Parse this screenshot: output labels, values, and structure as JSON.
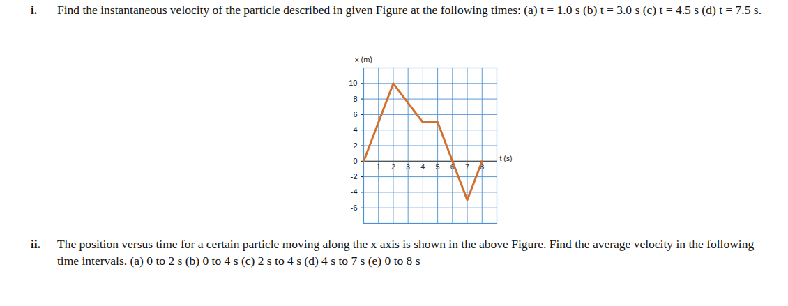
{
  "document": {
    "questions": [
      {
        "number": "i.",
        "text": "Find the instantaneous velocity of the particle described in given Figure at the following times: (a) t = 1.0 s (b) t = 3.0 s (c) t = 4.5 s (d) t = 7.5 s."
      },
      {
        "number": "ii.",
        "text": "The position versus time for a certain particle moving along the x axis is shown in the above Figure. Find the average velocity in the following time intervals. (a) 0 to 2 s (b) 0 to 4 s (c) 2 s to 4 s (d) 4 s to 7 s (e) 0 to 8 s"
      }
    ]
  },
  "chart_data": {
    "type": "line",
    "x_label": "t (s)",
    "y_label": "x (m)",
    "x": [
      0,
      2,
      4,
      5,
      7,
      8
    ],
    "values": [
      0,
      10,
      5,
      5,
      -5,
      0
    ],
    "color": "#d2702e",
    "xlim": [
      0,
      9
    ],
    "ylim": [
      -8,
      12
    ],
    "xticks": [
      1,
      2,
      3,
      4,
      5,
      6,
      7,
      8
    ],
    "yticks": [
      -6,
      -4,
      -2,
      0,
      2,
      4,
      6,
      8,
      10
    ],
    "grid": true
  }
}
